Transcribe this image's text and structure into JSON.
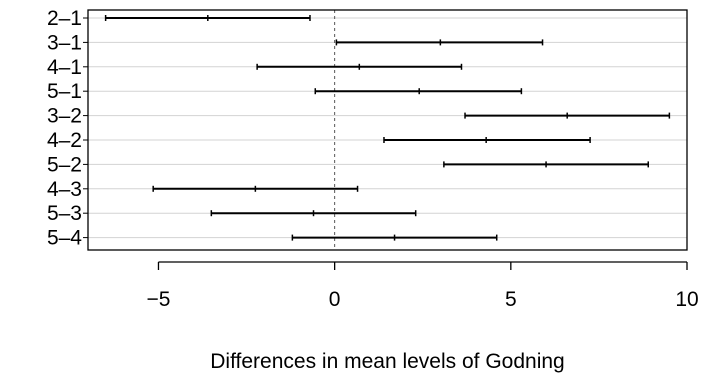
{
  "chart_data": {
    "type": "interval",
    "title": "",
    "xlabel": "Differences in mean levels of Godning",
    "ylabel": "",
    "xlim": [
      -7,
      10
    ],
    "x_ticks": [
      -5,
      0,
      5,
      10
    ],
    "x_tick_labels": [
      "−5",
      "0",
      "5",
      "10"
    ],
    "reference_line": 0,
    "grid": "horizontal",
    "comparisons": [
      {
        "label": "2–1",
        "lower": -6.5,
        "estimate": -3.6,
        "upper": -0.7
      },
      {
        "label": "3–1",
        "lower": 0.05,
        "estimate": 3.0,
        "upper": 5.9
      },
      {
        "label": "4–1",
        "lower": -2.2,
        "estimate": 0.7,
        "upper": 3.6
      },
      {
        "label": "5–1",
        "lower": -0.55,
        "estimate": 2.4,
        "upper": 5.3
      },
      {
        "label": "3–2",
        "lower": 3.7,
        "estimate": 6.6,
        "upper": 9.5
      },
      {
        "label": "4–2",
        "lower": 1.4,
        "estimate": 4.3,
        "upper": 7.25
      },
      {
        "label": "5–2",
        "lower": 3.1,
        "estimate": 6.0,
        "upper": 8.9
      },
      {
        "label": "4–3",
        "lower": -5.15,
        "estimate": -2.25,
        "upper": 0.65
      },
      {
        "label": "5–3",
        "lower": -3.5,
        "estimate": -0.6,
        "upper": 2.3
      },
      {
        "label": "5–4",
        "lower": -1.2,
        "estimate": 1.7,
        "upper": 4.6
      }
    ]
  }
}
